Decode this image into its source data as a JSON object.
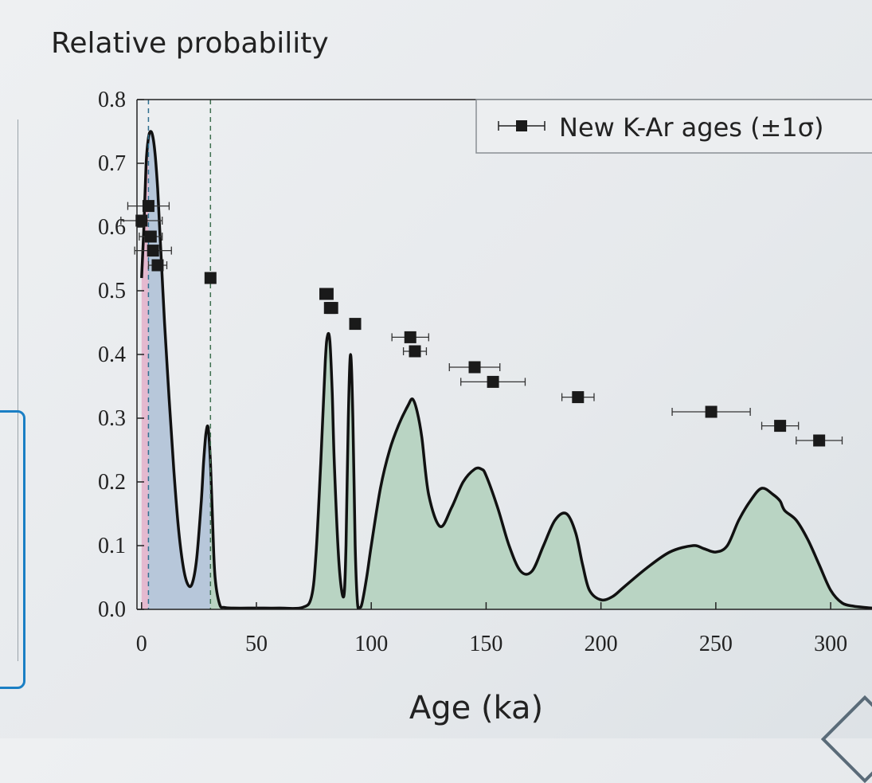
{
  "chart_data": {
    "type": "area",
    "ylabel": "Relative probability",
    "xlabel": "Age (ka)",
    "xlim": [
      -2,
      318
    ],
    "ylim": [
      0,
      0.8
    ],
    "xticks": [
      0,
      50,
      100,
      150,
      200,
      250,
      300
    ],
    "yticks": [
      "0.0",
      "0.1",
      "0.2",
      "0.3",
      "0.4",
      "0.5",
      "0.6",
      "0.7",
      "0.8"
    ],
    "grid": false,
    "legend": {
      "position": "top-right",
      "entries": [
        "New K-Ar ages (±1σ)"
      ]
    },
    "reference_lines_x": [
      3,
      30
    ],
    "probability_curve": {
      "x": [
        0,
        1,
        2,
        3,
        4,
        5,
        6,
        7,
        8,
        9,
        10,
        12,
        14,
        16,
        18,
        20,
        22,
        24,
        26,
        27,
        28,
        29,
        30,
        31,
        32,
        34,
        36,
        40,
        50,
        60,
        70,
        74,
        76,
        78,
        80,
        81,
        82,
        83,
        84,
        86,
        88,
        89,
        90,
        91,
        92,
        93,
        94,
        95,
        96,
        98,
        100,
        104,
        108,
        112,
        116,
        118,
        120,
        122,
        125,
        130,
        135,
        140,
        145,
        148,
        150,
        155,
        160,
        165,
        170,
        175,
        180,
        185,
        189,
        192,
        195,
        200,
        205,
        210,
        220,
        230,
        240,
        245,
        250,
        255,
        260,
        265,
        270,
        275,
        278,
        280,
        285,
        290,
        295,
        300,
        305,
        310,
        315,
        318
      ],
      "y": [
        0.52,
        0.6,
        0.7,
        0.74,
        0.75,
        0.74,
        0.71,
        0.66,
        0.59,
        0.52,
        0.45,
        0.33,
        0.22,
        0.13,
        0.07,
        0.04,
        0.04,
        0.08,
        0.17,
        0.23,
        0.275,
        0.285,
        0.23,
        0.13,
        0.05,
        0.008,
        0.003,
        0.002,
        0.002,
        0.002,
        0.003,
        0.02,
        0.09,
        0.23,
        0.39,
        0.43,
        0.42,
        0.34,
        0.22,
        0.07,
        0.02,
        0.1,
        0.3,
        0.4,
        0.3,
        0.1,
        0.01,
        0.003,
        0.01,
        0.05,
        0.1,
        0.19,
        0.25,
        0.29,
        0.32,
        0.33,
        0.31,
        0.27,
        0.18,
        0.13,
        0.16,
        0.2,
        0.22,
        0.22,
        0.21,
        0.16,
        0.1,
        0.06,
        0.06,
        0.1,
        0.14,
        0.15,
        0.12,
        0.07,
        0.03,
        0.015,
        0.02,
        0.035,
        0.065,
        0.09,
        0.1,
        0.095,
        0.09,
        0.1,
        0.14,
        0.17,
        0.19,
        0.18,
        0.17,
        0.155,
        0.14,
        0.11,
        0.07,
        0.03,
        0.01,
        0.005,
        0.003,
        0.002
      ]
    },
    "series": [
      {
        "name": "New K-Ar ages (±1σ)",
        "points": [
          {
            "x": 0,
            "y": 0.61,
            "err": 9
          },
          {
            "x": 3,
            "y": 0.633,
            "err": 9
          },
          {
            "x": 4,
            "y": 0.585,
            "err": 5
          },
          {
            "x": 5,
            "y": 0.563,
            "err": 8
          },
          {
            "x": 7,
            "y": 0.54,
            "err": 4
          },
          {
            "x": 30,
            "y": 0.52,
            "err": 0
          },
          {
            "x": 80,
            "y": 0.495,
            "err": 0
          },
          {
            "x": 81,
            "y": 0.495,
            "err": 0
          },
          {
            "x": 82,
            "y": 0.473,
            "err": 0
          },
          {
            "x": 83,
            "y": 0.473,
            "err": 0
          },
          {
            "x": 93,
            "y": 0.448,
            "err": 0
          },
          {
            "x": 117,
            "y": 0.427,
            "err": 8
          },
          {
            "x": 119,
            "y": 0.405,
            "err": 5
          },
          {
            "x": 145,
            "y": 0.38,
            "err": 11
          },
          {
            "x": 153,
            "y": 0.357,
            "err": 14
          },
          {
            "x": 190,
            "y": 0.333,
            "err": 7
          },
          {
            "x": 248,
            "y": 0.31,
            "err": 17
          },
          {
            "x": 278,
            "y": 0.288,
            "err": 8
          },
          {
            "x": 295,
            "y": 0.265,
            "err": 10
          }
        ]
      }
    ],
    "colors": {
      "young_fill": "#b7c7da",
      "old_fill": "#b9d4c3",
      "pink_band": "#e4b9cf",
      "curve": "#111111",
      "marker": "#1a1a1a",
      "ref_line_1": "#2f6f8f",
      "ref_line_2": "#3f7050"
    }
  }
}
